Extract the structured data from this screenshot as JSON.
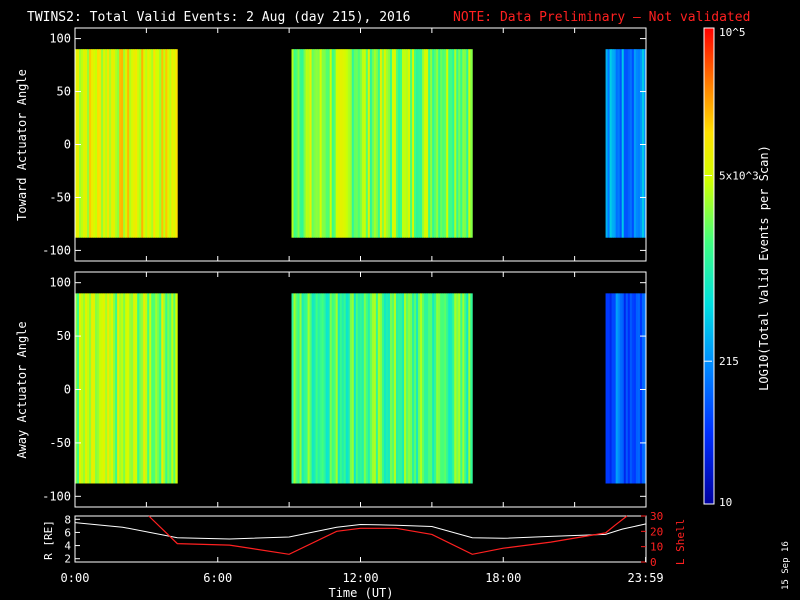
{
  "title": {
    "main": "TWINS2: Total Valid Events:  2 Aug (day 215), 2016",
    "note": "NOTE: Data Preliminary — Not validated"
  },
  "date_stamp": "15 Sep 16",
  "colors": {
    "background": "#000000",
    "axis": "#ffffff",
    "note": "#ff2020",
    "r_line": "#ffffff",
    "lshell_line": "#ff2020"
  },
  "chart_data": [
    {
      "type": "heatmap",
      "id": "toward",
      "ylabel": "Toward Actuator Angle",
      "ylim": [
        -110,
        110
      ],
      "yticks": [
        100,
        50,
        0,
        -50,
        -100
      ],
      "angle_range": [
        -88,
        90
      ],
      "xlim_hours": [
        0,
        24
      ],
      "segments": [
        {
          "start": 0.0,
          "end": 4.3,
          "level": 0.72
        },
        {
          "start": 9.1,
          "end": 16.7,
          "level": 0.62
        },
        {
          "start": 22.3,
          "end": 24.0,
          "level": 0.3
        }
      ]
    },
    {
      "type": "heatmap",
      "id": "away",
      "ylabel": "Away Actuator Angle",
      "ylim": [
        -110,
        110
      ],
      "yticks": [
        100,
        50,
        0,
        -50,
        -100
      ],
      "angle_range": [
        -88,
        90
      ],
      "xlim_hours": [
        0,
        24
      ],
      "segments": [
        {
          "start": 0.0,
          "end": 4.3,
          "level": 0.63
        },
        {
          "start": 9.1,
          "end": 16.7,
          "level": 0.55
        },
        {
          "start": 22.3,
          "end": 24.0,
          "level": 0.22
        }
      ]
    },
    {
      "type": "line",
      "id": "orbit",
      "ylabel_left": "R [RE]",
      "ylabel_right": "L Shell",
      "yticks_left": [
        8,
        6,
        4,
        2
      ],
      "ylim_left": [
        1.5,
        8.5
      ],
      "yticks_right": [
        30,
        20,
        10,
        0
      ],
      "ylim_right": [
        0,
        30
      ],
      "series": [
        {
          "name": "R",
          "axis": "left",
          "x": [
            0,
            2,
            4.3,
            6.5,
            9,
            11,
            12,
            13.5,
            15,
            16.7,
            18,
            20,
            22.3,
            23,
            24
          ],
          "y": [
            7.5,
            6.8,
            5.2,
            5.0,
            5.3,
            6.8,
            7.2,
            7.1,
            6.9,
            5.2,
            5.1,
            5.4,
            5.7,
            6.5,
            7.3
          ]
        },
        {
          "name": "L Shell",
          "axis": "right",
          "x": [
            3.1,
            4.3,
            6.5,
            9,
            11,
            12,
            13.5,
            15,
            16.7,
            18,
            20,
            22.3,
            22.7,
            23.2
          ],
          "y": [
            30,
            12,
            11,
            5,
            20,
            22,
            22,
            18,
            5,
            9,
            13,
            19,
            24,
            30
          ]
        }
      ],
      "xticks": [
        0,
        6,
        12,
        18,
        23.983
      ],
      "xtick_labels": [
        "0:00",
        "6:00",
        "12:00",
        "18:00",
        "23:59"
      ],
      "xlabel": "Time (UT)"
    }
  ],
  "colorbar": {
    "label": "LOG10(Total Valid Events per Scan)",
    "ticks": [
      {
        "label": "10^5",
        "frac": 1.0
      },
      {
        "label": "5x10^3",
        "frac": 0.69
      },
      {
        "label": "215",
        "frac": 0.3
      },
      {
        "label": "10",
        "frac": 0.0
      }
    ]
  }
}
